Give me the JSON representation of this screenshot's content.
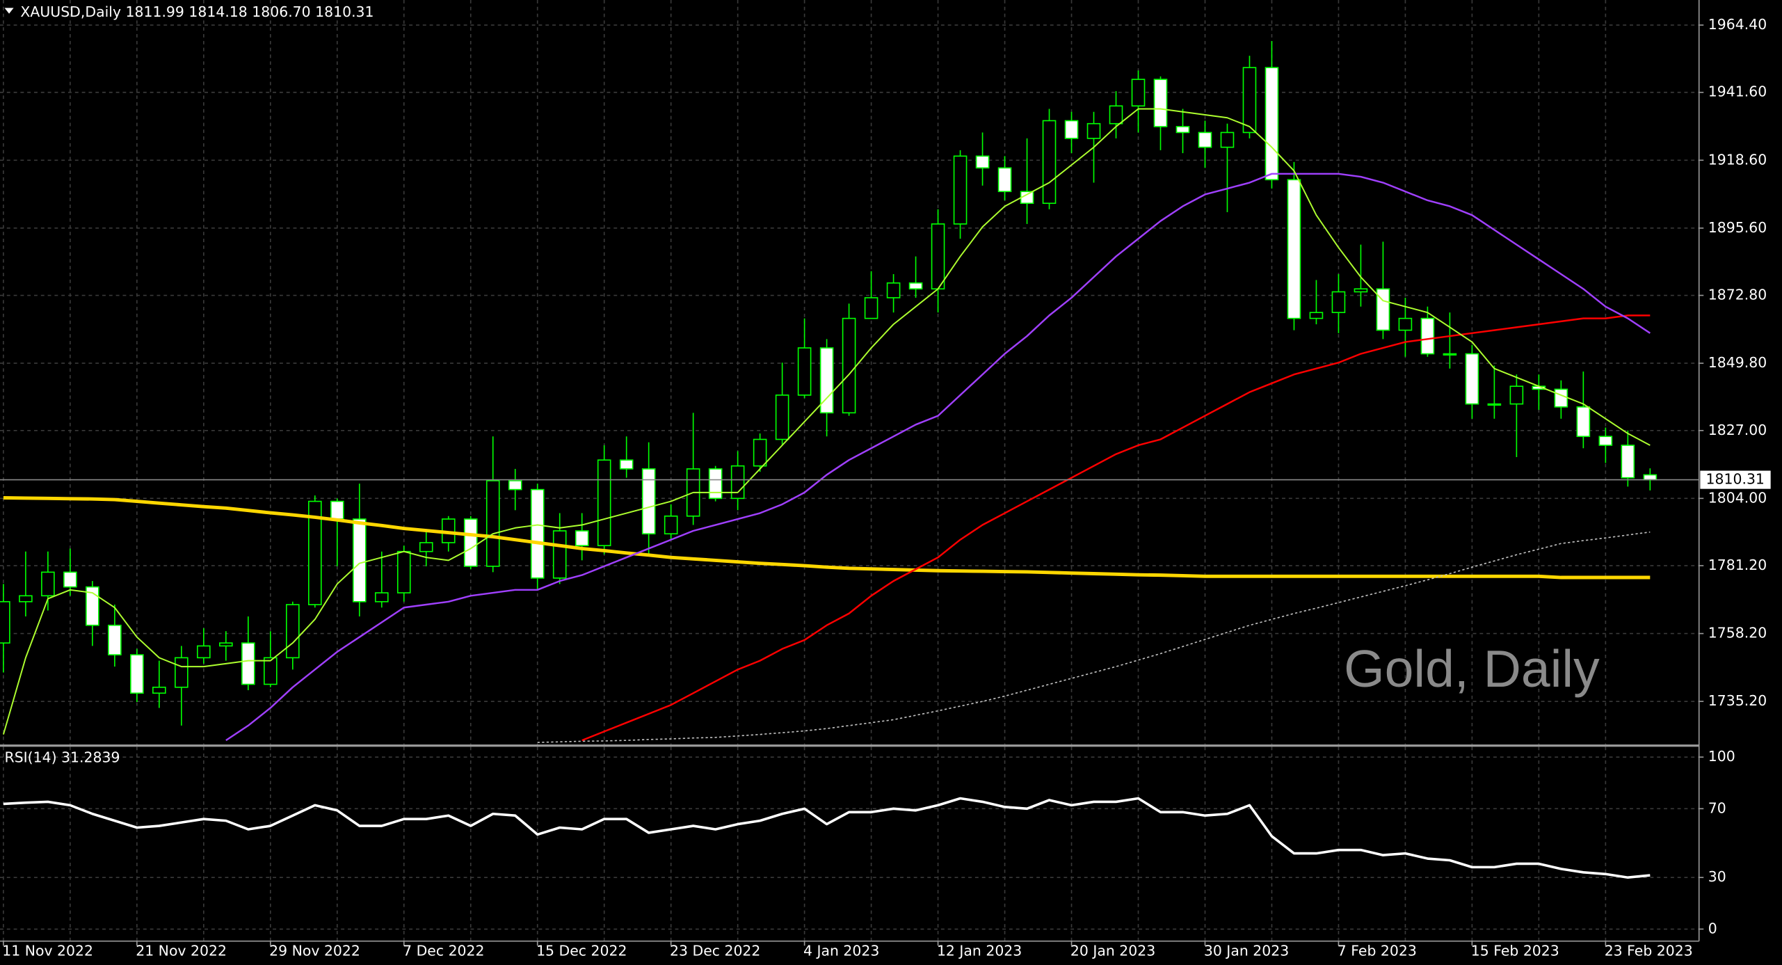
{
  "chart_data": {
    "type": "candlestick",
    "title": "XAUUSD,Daily  1811.99 1814.18 1806.70 1810.31",
    "annotation": "Gold, Daily",
    "categories": [
      "11 Nov 2022",
      null,
      null,
      null,
      null,
      null,
      "21 Nov 2022",
      null,
      null,
      null,
      null,
      null,
      "29 Nov 2022",
      null,
      null,
      null,
      null,
      null,
      "7 Dec 2022",
      null,
      null,
      null,
      null,
      null,
      "15 Dec 2022",
      null,
      null,
      null,
      null,
      null,
      "23 Dec 2022",
      null,
      null,
      null,
      null,
      null,
      "4 Jan 2023",
      null,
      null,
      null,
      null,
      null,
      "12 Jan 2023",
      null,
      null,
      null,
      null,
      null,
      "20 Jan 2023",
      null,
      null,
      null,
      null,
      null,
      "30 Jan 2023",
      null,
      null,
      null,
      null,
      null,
      "7 Feb 2023",
      null,
      null,
      null,
      null,
      null,
      "15 Feb 2023",
      null,
      null,
      null,
      null,
      null,
      "23 Feb 2023",
      null,
      null
    ],
    "open": [
      1755,
      1769,
      1771,
      1779,
      1774,
      1761,
      1751,
      1738,
      1740,
      1750,
      1754,
      1755,
      1741,
      1750,
      1768,
      1803,
      1797,
      1769,
      1772,
      1786,
      1789,
      1797,
      1781,
      1810,
      1807,
      1777,
      1793,
      1788,
      1817,
      1814,
      1792,
      1798,
      1814,
      1804,
      1815,
      1824,
      1839,
      1855,
      1833,
      1865,
      1872,
      1877,
      1875,
      1897,
      1920,
      1916,
      1908,
      1904,
      1932,
      1926,
      1931,
      1937,
      1946,
      1930,
      1928,
      1923,
      1928,
      1950,
      1912,
      1865,
      1867,
      1874,
      1875,
      1861,
      1865,
      1853,
      1853,
      1836,
      1836,
      1842,
      1841,
      1835,
      1825,
      1822,
      1811.99
    ],
    "high": [
      1775,
      1786,
      1786,
      1787,
      1776,
      1768,
      1753,
      1749,
      1754,
      1760,
      1759,
      1764,
      1759,
      1769,
      1805,
      1804,
      1809,
      1786,
      1788,
      1793,
      1798,
      1798,
      1825,
      1814,
      1809,
      1799,
      1799,
      1822,
      1825,
      1823,
      1802,
      1833,
      1815,
      1820,
      1826,
      1850,
      1865,
      1858,
      1870,
      1881,
      1880,
      1886,
      1902,
      1922,
      1928,
      1920,
      1926,
      1936,
      1935,
      1935,
      1942,
      1949,
      1947,
      1936,
      1932,
      1931,
      1954,
      1959,
      1918,
      1878,
      1880,
      1890,
      1891,
      1872,
      1869,
      1867,
      1856,
      1849,
      1846,
      1846,
      1844,
      1847,
      1828,
      1827,
      1814.18
    ],
    "low": [
      1745,
      1764,
      1766,
      1771,
      1754,
      1747,
      1735,
      1733,
      1727,
      1748,
      1749,
      1739,
      1740,
      1746,
      1767,
      1781,
      1764,
      1767,
      1769,
      1781,
      1786,
      1780,
      1779,
      1800,
      1773,
      1775,
      1783,
      1785,
      1811,
      1785,
      1790,
      1795,
      1803,
      1800,
      1813,
      1822,
      1838,
      1825,
      1832,
      1865,
      1867,
      1872,
      1867,
      1892,
      1910,
      1905,
      1897,
      1902,
      1921,
      1911,
      1926,
      1928,
      1922,
      1921,
      1916,
      1901,
      1926,
      1909,
      1861,
      1863,
      1860,
      1869,
      1858,
      1852,
      1852,
      1848,
      1831,
      1831,
      1818,
      1834,
      1831,
      1821,
      1816,
      1808,
      1806.7
    ],
    "close": [
      1769,
      1771,
      1779,
      1774,
      1761,
      1751,
      1738,
      1740,
      1750,
      1754,
      1755,
      1741,
      1750,
      1768,
      1803,
      1797,
      1769,
      1772,
      1786,
      1789,
      1797,
      1781,
      1810,
      1807,
      1777,
      1793,
      1788,
      1817,
      1814,
      1792,
      1798,
      1814,
      1804,
      1815,
      1824,
      1839,
      1855,
      1833,
      1865,
      1872,
      1877,
      1875,
      1897,
      1920,
      1916,
      1908,
      1904,
      1932,
      1926,
      1931,
      1937,
      1946,
      1930,
      1928,
      1923,
      1928,
      1950,
      1912,
      1865,
      1867,
      1874,
      1875,
      1861,
      1865,
      1853,
      1853,
      1836,
      1836,
      1842,
      1841,
      1835,
      1825,
      1822,
      1811,
      1810.31
    ],
    "bull_color": "#000000",
    "bear_color": "#ffffff",
    "wick_color": "#00ff00",
    "lines": [
      {
        "color": "#ffd700",
        "width": 3,
        "dash": false,
        "values": [
          1804.2,
          1804.1,
          1804,
          1803.9,
          1803.8,
          1803.6,
          1803,
          1802.4,
          1801.8,
          1801.2,
          1800.7,
          1799.9,
          1799.1,
          1798.4,
          1797.6,
          1796.7,
          1795.7,
          1794.8,
          1793.8,
          1793.1,
          1792.4,
          1791.7,
          1791,
          1790,
          1789,
          1788,
          1787,
          1786.3,
          1785.5,
          1784.8,
          1784,
          1783.5,
          1783,
          1782.5,
          1782,
          1781.6,
          1781.2,
          1780.7,
          1780.3,
          1780.1,
          1779.9,
          1779.7,
          1779.5,
          1779.4,
          1779.3,
          1779.2,
          1779.1,
          1778.9,
          1778.7,
          1778.5,
          1778.3,
          1778.1,
          1778,
          1777.8,
          1777.6,
          1777.6,
          1777.6,
          1777.6,
          1777.6,
          1777.6,
          1777.6,
          1777.6,
          1777.6,
          1777.6,
          1777.6,
          1777.6,
          1777.6,
          1777.6,
          1777.6,
          1777.6,
          1777.2,
          1777.2,
          1777.2,
          1777.2,
          1777.2
        ]
      },
      {
        "color": "#c0c0c0",
        "width": 1,
        "dash": true,
        "values": [
          null,
          null,
          null,
          null,
          null,
          null,
          null,
          null,
          null,
          null,
          null,
          null,
          null,
          null,
          null,
          null,
          null,
          null,
          null,
          null,
          null,
          null,
          null,
          null,
          1721.3,
          1721.5,
          1721.7,
          1721.8,
          1722,
          1722.3,
          1722.5,
          1722.8,
          1723,
          1723.5,
          1724,
          1724.6,
          1725.2,
          1726,
          1727,
          1728,
          1729,
          1730.5,
          1732,
          1733.6,
          1735.2,
          1737,
          1739,
          1741,
          1743,
          1745,
          1747,
          1749.2,
          1751.4,
          1753.8,
          1756.2,
          1758.6,
          1761,
          1763,
          1765,
          1766.8,
          1768.7,
          1770.6,
          1772.5,
          1774.4,
          1776.4,
          1778.5,
          1780.7,
          1782.8,
          1784.9,
          1786.8,
          1788.7,
          1789.7,
          1790.6,
          1791.6,
          1792.6
        ]
      },
      {
        "color": "#ff0000",
        "width": 1.5,
        "dash": false,
        "values": [
          null,
          null,
          null,
          null,
          null,
          null,
          null,
          null,
          null,
          null,
          null,
          null,
          null,
          null,
          null,
          null,
          null,
          null,
          null,
          null,
          null,
          null,
          null,
          null,
          null,
          null,
          1722,
          1725,
          1728,
          1731,
          1734,
          1738,
          1742,
          1746,
          1749,
          1753,
          1756,
          1761,
          1765,
          1771,
          1776,
          1780,
          1784,
          1790,
          1795,
          1799,
          1803,
          1807,
          1811,
          1815,
          1819,
          1822,
          1824,
          1828,
          1832,
          1836,
          1840,
          1843,
          1846,
          1848,
          1850,
          1853,
          1855,
          1857,
          1858,
          1859,
          1860,
          1861,
          1862,
          1863,
          1864,
          1865,
          1865,
          1866,
          1866
        ]
      },
      {
        "color": "#a040ff",
        "width": 1.5,
        "dash": false,
        "values": [
          null,
          null,
          null,
          null,
          null,
          null,
          null,
          null,
          null,
          null,
          1722,
          1727,
          1733,
          1740,
          1746,
          1752,
          1757,
          1762,
          1767,
          1768,
          1769,
          1771,
          1772,
          1773,
          1773,
          1776,
          1778,
          1781,
          1784,
          1787,
          1790,
          1793,
          1795,
          1797,
          1799,
          1802,
          1806,
          1812,
          1817,
          1821,
          1825,
          1829,
          1832,
          1839,
          1846,
          1853,
          1859,
          1866,
          1872,
          1879,
          1886,
          1892,
          1898,
          1903,
          1907,
          1909,
          1911,
          1914,
          1914,
          1914,
          1914,
          1913,
          1911,
          1908,
          1905,
          1903,
          1900,
          1895,
          1890,
          1885,
          1880,
          1875,
          1869,
          1865,
          1860
        ]
      },
      {
        "color": "#adff2f",
        "width": 1.2,
        "dash": false,
        "values": [
          1724,
          1750,
          1770,
          1773,
          1772,
          1767,
          1757,
          1750,
          1747,
          1747,
          1748,
          1749,
          1749,
          1755,
          1763,
          1775,
          1782,
          1784,
          1786,
          1784,
          1783,
          1787,
          1792,
          1794,
          1795,
          1794,
          1795,
          1797,
          1799,
          1801,
          1803,
          1806,
          1806,
          1806,
          1814,
          1822,
          1830,
          1838,
          1846,
          1855,
          1863,
          1869,
          1875,
          1886,
          1896,
          1903,
          1907,
          1911,
          1917,
          1923,
          1930,
          1936,
          1936,
          1935,
          1934,
          1933,
          1930,
          1923,
          1915,
          1900,
          1889,
          1879,
          1871,
          1869,
          1867,
          1862,
          1857,
          1848,
          1845,
          1842,
          1839,
          1836,
          1831,
          1826,
          1822
        ]
      }
    ],
    "ylim": [
      1720.6,
      1972.9
    ],
    "yticks": [
      {
        "value": 1964.4,
        "label": "1964.40"
      },
      {
        "value": 1941.6,
        "label": "1941.60"
      },
      {
        "value": 1918.6,
        "label": "1918.60"
      },
      {
        "value": 1895.6,
        "label": "1895.60"
      },
      {
        "value": 1872.8,
        "label": "1872.80"
      },
      {
        "value": 1849.8,
        "label": "1849.80"
      },
      {
        "value": 1827,
        "label": "1827.00"
      },
      {
        "value": 1804,
        "label": "1804.00"
      },
      {
        "value": 1781.2,
        "label": "1781.20"
      },
      {
        "value": 1758.2,
        "label": "1758.20"
      },
      {
        "value": 1735.2,
        "label": "1735.20"
      }
    ],
    "current_price": {
      "value": 1810.31,
      "label": "1810.31"
    },
    "grid": true,
    "indicator": {
      "title": "RSI(14) 31.2839",
      "color": "#ffffff",
      "values": [
        72.8,
        73.5,
        74,
        72,
        67,
        63,
        59,
        60,
        62,
        64,
        63,
        58,
        60,
        66,
        72,
        69,
        60,
        60,
        64,
        64,
        66,
        60,
        67,
        66,
        55,
        59,
        58,
        64,
        64,
        56,
        58,
        60,
        58,
        61,
        63,
        67,
        70,
        61,
        68,
        68,
        70,
        69,
        72,
        76,
        74,
        71,
        70,
        75,
        72,
        74,
        74,
        76,
        68,
        68,
        66,
        67,
        72,
        54,
        44,
        44,
        46,
        46,
        43,
        44,
        41,
        40,
        36,
        36,
        38,
        38,
        35,
        33,
        32,
        30,
        31.2839
      ],
      "ylim": [
        -7,
        106
      ],
      "yticks": [
        100,
        70,
        30,
        0
      ]
    }
  }
}
